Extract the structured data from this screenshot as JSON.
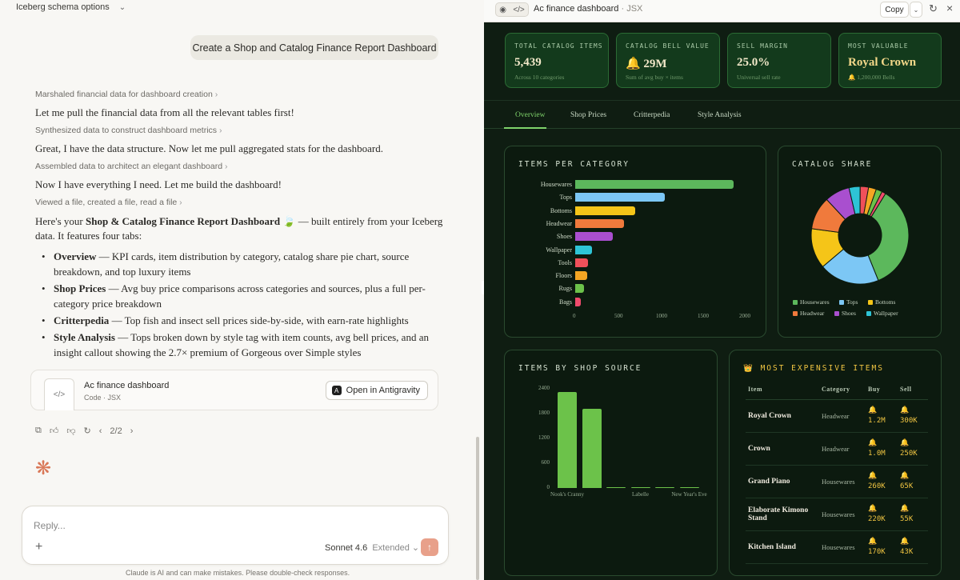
{
  "left": {
    "topbar": {
      "title": "Iceberg schema options"
    },
    "user_message": "Create a Shop and Catalog Finance Report Dashboard",
    "steps": [
      {
        "label": "Marshaled financial data for dashboard creation",
        "text": "Let me pull the financial data from all the relevant tables first!"
      },
      {
        "label": "Synthesized data to construct dashboard metrics",
        "text": "Great, I have the data structure. Now let me pull aggregated stats for the dashboard."
      },
      {
        "label": "Assembled data to architect an elegant dashboard",
        "text": "Now I have everything I need. Let me build the dashboard!"
      },
      {
        "label": "Viewed a file, created a file, read a file",
        "text": ""
      }
    ],
    "summary": {
      "pre": "Here's your ",
      "bold": "Shop & Catalog Finance Report Dashboard",
      "emoji": "🍃",
      "post": " — built entirely from your Iceberg data. It features four tabs:"
    },
    "bullets": [
      {
        "bold": "Overview",
        "text": " — KPI cards, item distribution by category, catalog share pie chart, source breakdown, and top luxury items"
      },
      {
        "bold": "Shop Prices",
        "text": " — Avg buy price comparisons across categories and sources, plus a full per-category price breakdown"
      },
      {
        "bold": "Critterpedia",
        "text": " — Top fish and insect sell prices side-by-side, with earn-rate highlights"
      },
      {
        "bold": "Style Analysis",
        "text": " — Tops broken down by style tag with item counts, avg bell prices, and an insight callout showing the 2.7× premium of Gorgeous over Simple styles"
      }
    ],
    "artifact": {
      "title": "Ac finance dashboard",
      "subtitle": "Code · JSX",
      "open_label": "Open in Antigravity"
    },
    "pager": "2/2",
    "reply": {
      "placeholder": "Reply...",
      "model": "Sonnet 4.6",
      "mode": "Extended"
    },
    "disclaimer": "Claude is AI and can make mistakes. Please double-check responses."
  },
  "right": {
    "header": {
      "title": "Ac finance dashboard",
      "type": "· JSX",
      "copy": "Copy"
    },
    "kpis": [
      {
        "label": "TOTAL CATALOG ITEMS",
        "value": "5,439",
        "sub": "Across 10 categories"
      },
      {
        "label": "CATALOG BELL VALUE",
        "value": "🔔 29M",
        "sub": "Sum of avg buy × items"
      },
      {
        "label": "SELL MARGIN",
        "value": "25.0%",
        "sub": "Universal sell rate"
      },
      {
        "label": "MOST VALUABLE",
        "value": "Royal Crown",
        "sub": "🔔 1,200,000 Bells"
      }
    ],
    "tabs": [
      "Overview",
      "Shop Prices",
      "Critterpedia",
      "Style Analysis"
    ],
    "cards": {
      "items_per_category": "ITEMS PER CATEGORY",
      "catalog_share": "CATALOG SHARE",
      "items_by_source": "ITEMS BY SHOP SOURCE",
      "most_expensive": "MOST EXPENSIVE ITEMS"
    },
    "table": {
      "headers": [
        "Item",
        "Category",
        "Buy",
        "Sell"
      ],
      "rows": [
        {
          "item": "Royal Crown",
          "category": "Headwear",
          "buy": "1.2M",
          "sell": "300K"
        },
        {
          "item": "Crown",
          "category": "Headwear",
          "buy": "1.0M",
          "sell": "250K"
        },
        {
          "item": "Grand Piano",
          "category": "Housewares",
          "buy": "260K",
          "sell": "65K"
        },
        {
          "item": "Elaborate Kimono Stand",
          "category": "Housewares",
          "buy": "220K",
          "sell": "55K"
        },
        {
          "item": "Kitchen Island",
          "category": "Housewares",
          "buy": "170K",
          "sell": "43K"
        }
      ]
    }
  },
  "colors": {
    "accent_green": "#7fd36b",
    "gold": "#f0c542",
    "user_bubble": "#ebe9e2",
    "dash_bg": "#0f1d12"
  },
  "chart_data": [
    {
      "type": "bar",
      "orientation": "horizontal",
      "title": "ITEMS PER CATEGORY",
      "categories": [
        "Housewares",
        "Tops",
        "Bottoms",
        "Headwear",
        "Shoes",
        "Wallpaper",
        "Tools",
        "Floors",
        "Rugs",
        "Bags"
      ],
      "values": [
        1900,
        1080,
        720,
        590,
        450,
        200,
        150,
        140,
        110,
        70
      ],
      "colors": [
        "#5cb85c",
        "#7cc7f5",
        "#f5c518",
        "#f07a3c",
        "#a94fcf",
        "#2ec4d6",
        "#f0505a",
        "#f5a623",
        "#6cc24a",
        "#ef4b6c"
      ],
      "xticks": [
        "0",
        "500",
        "1000",
        "1500",
        "2000"
      ],
      "xlim": [
        0,
        2000
      ]
    },
    {
      "type": "pie",
      "title": "CATALOG SHARE",
      "donut": true,
      "labels": [
        "Housewares",
        "Tops",
        "Bottoms",
        "Headwear",
        "Shoes",
        "Wallpaper",
        "Tools",
        "Floors",
        "Rugs",
        "Bags"
      ],
      "values": [
        1900,
        1080,
        720,
        590,
        450,
        200,
        150,
        140,
        110,
        70
      ],
      "legend": [
        "Housewares",
        "Tops",
        "Bottoms",
        "Headwear",
        "Shoes",
        "Wallpaper"
      ],
      "legend_position": "bottom"
    },
    {
      "type": "bar",
      "title": "ITEMS BY SHOP SOURCE",
      "categories": [
        "Nook's Cranny",
        "",
        "",
        "Labelle",
        "",
        "New Year's Eve"
      ],
      "values": [
        2330,
        1920,
        25,
        20,
        15,
        10
      ],
      "yticks": [
        "0",
        "600",
        "1200",
        "1800",
        "2400"
      ],
      "ylim": [
        0,
        2400
      ]
    }
  ]
}
